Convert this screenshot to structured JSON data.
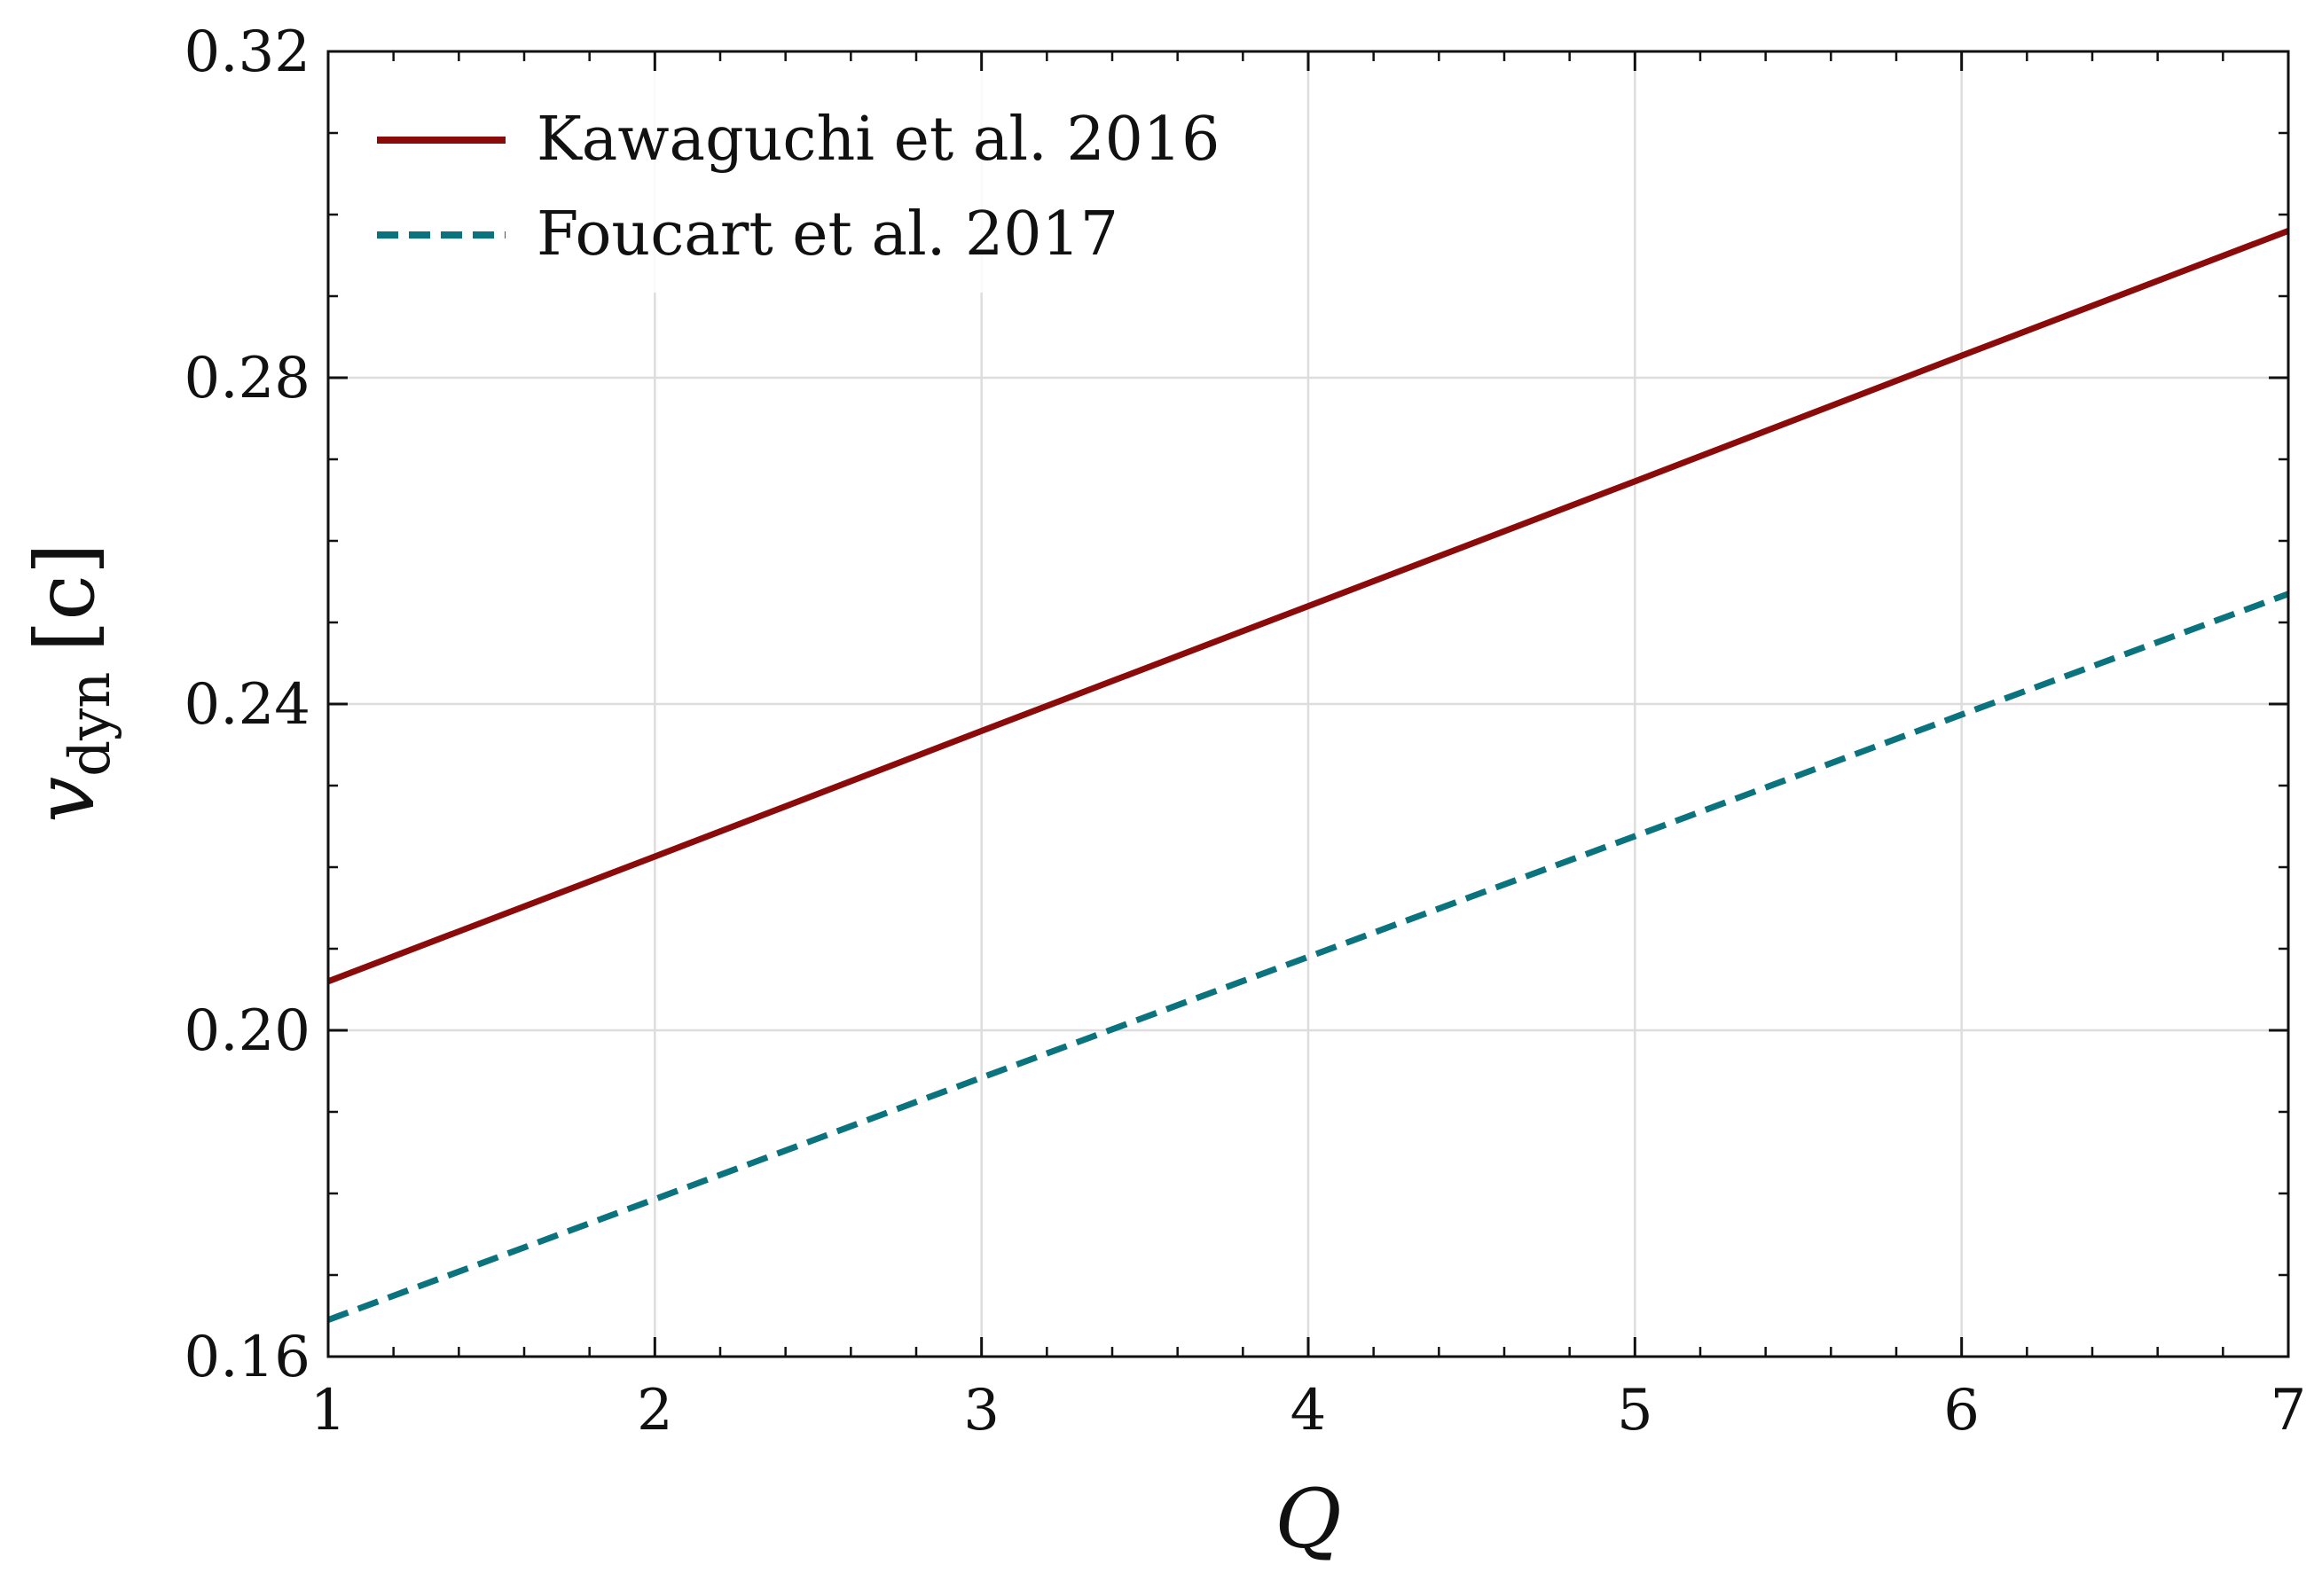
{
  "chart_data": {
    "type": "line",
    "title": "",
    "xlabel": "Q",
    "ylabel": "v_dyn [c]",
    "ylabel_main": "v",
    "ylabel_sub": "dyn",
    "ylabel_unit": "[c]",
    "xlim": [
      1,
      7
    ],
    "ylim": [
      0.16,
      0.32
    ],
    "xticks": [
      "1",
      "2",
      "3",
      "4",
      "5",
      "6",
      "7"
    ],
    "yticks": [
      "0.16",
      "0.20",
      "0.24",
      "0.28",
      "0.32"
    ],
    "grid": true,
    "legend_position": "top-left",
    "series": [
      {
        "name": "Kawaguchi et al. 2016",
        "color": "#8b0a0a",
        "style": "solid",
        "x": [
          1,
          2,
          3,
          4,
          5,
          6,
          7
        ],
        "y": [
          0.206,
          0.2213,
          0.2367,
          0.252,
          0.2673,
          0.2827,
          0.298
        ]
      },
      {
        "name": "Foucart et al. 2017",
        "color": "#0a737d",
        "style": "dashed",
        "x": [
          1,
          2,
          3,
          4,
          5,
          6,
          7
        ],
        "y": [
          0.1645,
          0.1793,
          0.1942,
          0.209,
          0.2238,
          0.2387,
          0.2535
        ]
      }
    ]
  }
}
